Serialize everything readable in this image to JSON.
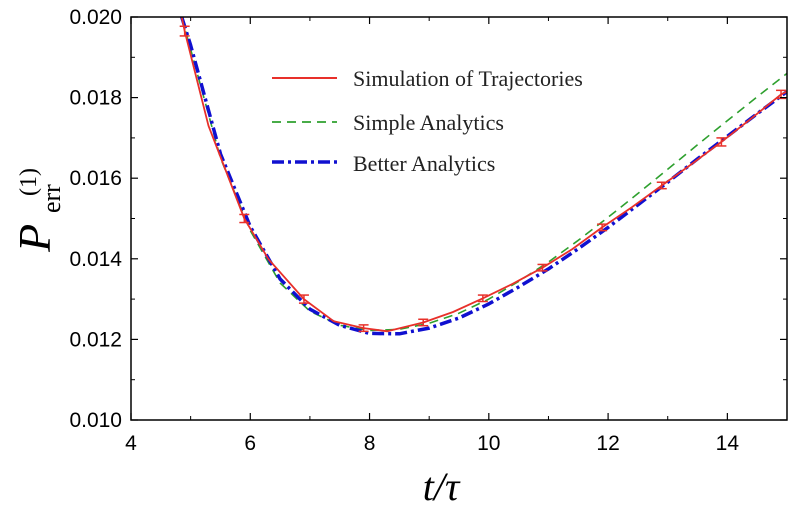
{
  "chart_data": {
    "type": "line",
    "xlabel": "t/τ",
    "ylabel": {
      "main": "P",
      "subscript": "err",
      "superscript": "(1)"
    },
    "xlim": [
      4,
      15
    ],
    "ylim": [
      0.01,
      0.02
    ],
    "x_ticks": [
      4,
      6,
      8,
      10,
      12,
      14
    ],
    "x_tick_labels": [
      "4",
      "6",
      "8",
      "10",
      "12",
      "14"
    ],
    "y_ticks": [
      0.01,
      0.012,
      0.014,
      0.016,
      0.018,
      0.02
    ],
    "y_tick_labels": [
      "0.010",
      "0.012",
      "0.014",
      "0.016",
      "0.018",
      "0.020"
    ],
    "grid": false,
    "legend_position": "top-center",
    "series": [
      {
        "name": "Simulation of Trajectories",
        "color": "#e8302a",
        "style": "solid",
        "x": [
          4.85,
          4.9,
          5.3,
          5.9,
          6.3,
          6.9,
          7.4,
          7.9,
          8.3,
          8.9,
          9.4,
          9.9,
          10.4,
          10.9,
          11.4,
          11.9,
          12.4,
          12.9,
          13.4,
          13.9,
          14.4,
          14.9,
          15.0
        ],
        "y": [
          0.02,
          0.01965,
          0.0173,
          0.015,
          0.014,
          0.013,
          0.01245,
          0.01228,
          0.0122,
          0.01242,
          0.01268,
          0.01302,
          0.01338,
          0.01378,
          0.01424,
          0.01478,
          0.01528,
          0.01582,
          0.01635,
          0.0169,
          0.01748,
          0.01808,
          0.01815
        ],
        "errorbars": {
          "x": [
            4.9,
            5.9,
            6.9,
            7.9,
            8.9,
            9.9,
            10.9,
            11.9,
            12.9,
            13.9,
            14.9
          ],
          "y": [
            0.01965,
            0.015,
            0.013,
            0.01228,
            0.01242,
            0.01302,
            0.01378,
            0.01478,
            0.01582,
            0.0169,
            0.01808
          ],
          "err": [
            0.00012,
            0.0001,
            0.0001,
            8e-05,
            8e-05,
            8e-05,
            8e-05,
            8e-05,
            8e-05,
            0.0001,
            0.0001
          ]
        }
      },
      {
        "name": "Simple Analytics",
        "color": "#2ea02e",
        "style": "dashed",
        "x": [
          4.85,
          5.0,
          5.5,
          6.0,
          6.5,
          7.0,
          7.5,
          8.0,
          8.5,
          9.0,
          9.5,
          10.0,
          10.5,
          11.0,
          11.5,
          12.0,
          12.5,
          13.0,
          13.5,
          14.0,
          14.5,
          15.0
        ],
        "y": [
          0.02,
          0.0192,
          0.0165,
          0.0147,
          0.0134,
          0.0127,
          0.01235,
          0.01222,
          0.01225,
          0.0124,
          0.01265,
          0.013,
          0.01344,
          0.01392,
          0.01446,
          0.01503,
          0.01562,
          0.01622,
          0.01683,
          0.01743,
          0.01802,
          0.0186
        ]
      },
      {
        "name": "Better Analytics",
        "color": "#1010d0",
        "style": "dashdot",
        "x": [
          4.85,
          5.0,
          5.5,
          6.0,
          6.5,
          7.0,
          7.5,
          8.0,
          8.5,
          9.0,
          9.5,
          10.0,
          10.5,
          11.0,
          11.5,
          12.0,
          12.5,
          13.0,
          13.5,
          14.0,
          14.5,
          15.0
        ],
        "y": [
          0.02,
          0.0193,
          0.0166,
          0.0148,
          0.0135,
          0.01275,
          0.01235,
          0.01215,
          0.01214,
          0.01228,
          0.01253,
          0.01288,
          0.0133,
          0.01375,
          0.01425,
          0.01478,
          0.01534,
          0.0159,
          0.01648,
          0.01704,
          0.0176,
          0.01815
        ]
      }
    ]
  }
}
